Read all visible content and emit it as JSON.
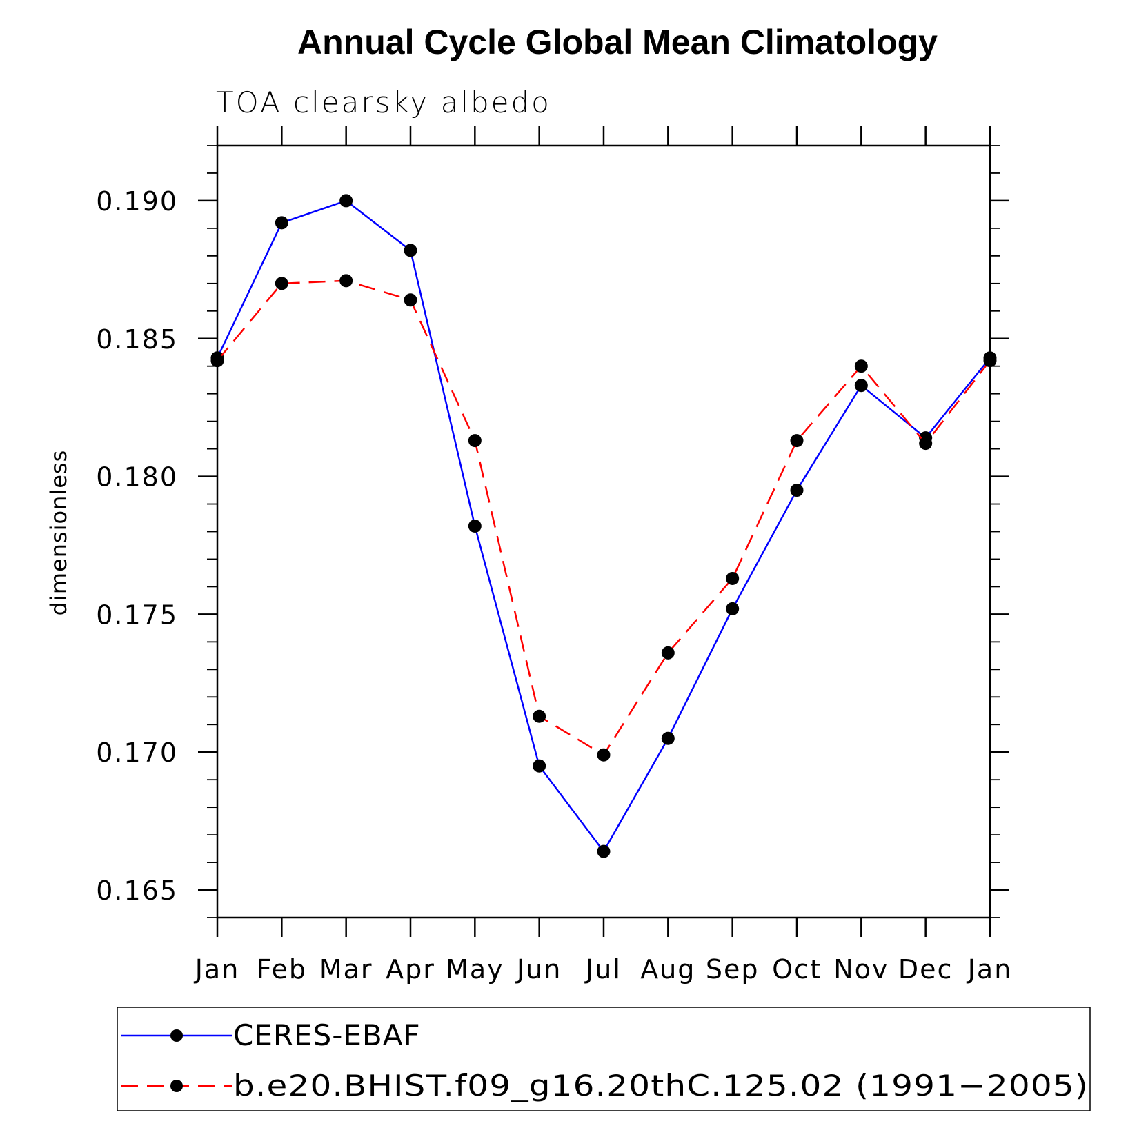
{
  "chart_data": {
    "type": "line",
    "title": "Annual Cycle Global Mean Climatology",
    "subtitle": "TOA clearsky albedo",
    "xlabel": "",
    "ylabel": "dimensionless",
    "categories": [
      "Jan",
      "Feb",
      "Mar",
      "Apr",
      "May",
      "Jun",
      "Jul",
      "Aug",
      "Sep",
      "Oct",
      "Nov",
      "Dec",
      "Jan"
    ],
    "ylim": [
      0.164,
      0.192
    ],
    "yticks": [
      "0.165",
      "0.170",
      "0.175",
      "0.180",
      "0.185",
      "0.190"
    ],
    "grid": false,
    "legend_position": "bottom",
    "series": [
      {
        "name": "CERES-EBAF",
        "color": "#0000ff",
        "line_style": "solid",
        "marker": "filled-circle",
        "values": [
          0.1843,
          0.1892,
          0.19,
          0.1882,
          0.1782,
          0.1695,
          0.1664,
          0.1705,
          0.1752,
          0.1795,
          0.1833,
          0.1814,
          0.1843
        ]
      },
      {
        "name": "b.e20.BHIST.f09_g16.20thC.125.02 (1991-2005)",
        "color": "#ff0000",
        "line_style": "dashed",
        "marker": "filled-circle",
        "values": [
          0.1842,
          0.187,
          0.1871,
          0.1864,
          0.1813,
          0.1713,
          0.1699,
          0.1736,
          0.1763,
          0.1813,
          0.184,
          0.1812,
          0.1842
        ]
      }
    ]
  },
  "legend": {
    "items": [
      {
        "label": "CERES-EBAF"
      },
      {
        "label": "b.e20.BHIST.f09_g16.20thC.125.02 (1991−2005)"
      }
    ]
  }
}
